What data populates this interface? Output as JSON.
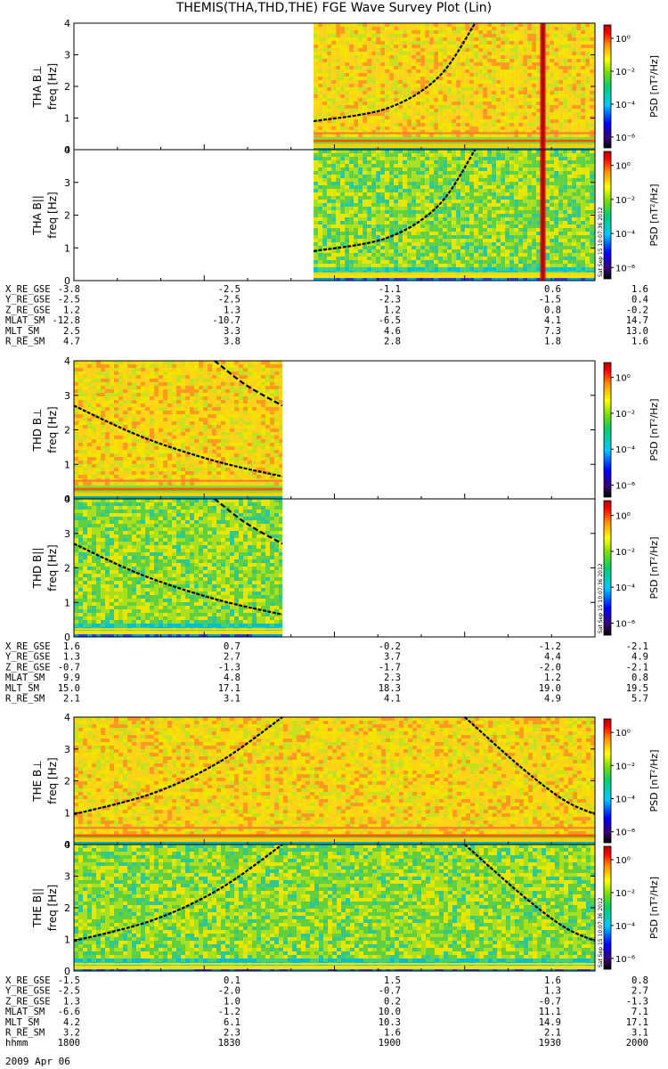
{
  "title": "THEMIS(THA,THD,THE) FGE Wave Survey Plot (Lin)",
  "date_label": "2009 Apr 06",
  "ylabel_freq": "freq [Hz]",
  "colorbar": {
    "label": "PSD [nT²/Hz]",
    "ticks": [
      "10⁰",
      "10⁻²",
      "10⁻⁴",
      "10⁻⁶"
    ],
    "stamp": "Sat Sep 15 10:07:36 2012"
  },
  "chart_data": [
    {
      "type": "heatmap",
      "probe": "THA",
      "panels": [
        {
          "name": "THA B⊥",
          "ylim": [
            0,
            4
          ],
          "yticks": [
            0,
            1,
            2,
            3,
            4
          ],
          "data_start_frac": 0.46,
          "data_end_frac": 1.0
        },
        {
          "name": "THA B||",
          "ylim": [
            0,
            4
          ],
          "yticks": [
            0,
            1,
            2,
            3,
            4
          ],
          "data_start_frac": 0.46,
          "data_end_frac": 1.0
        }
      ],
      "gyro_curves": [
        {
          "x": [
            0.46,
            0.6,
            0.7,
            0.77
          ],
          "y": [
            0.9,
            1.3,
            2.3,
            4.0
          ]
        }
      ],
      "spike_frac": 0.9,
      "ephemeris": {
        "X_RE_GSE": [
          "-3.8",
          "-2.5",
          "-1.1",
          "0.6",
          "1.6"
        ],
        "Y_RE_GSE": [
          "-2.5",
          "-2.5",
          "-2.3",
          "-1.5",
          "0.4"
        ],
        "Z_RE_GSE": [
          "1.2",
          "1.3",
          "1.2",
          "0.8",
          "-0.2"
        ],
        "MLAT_SM": [
          "-12.8",
          "-10.7",
          "-6.5",
          "4.1",
          "14.7"
        ],
        "MLT_SM": [
          "2.5",
          "3.3",
          "4.6",
          "7.3",
          "13.0"
        ],
        "R_RE_SM": [
          "4.7",
          "3.8",
          "2.8",
          "1.8",
          "1.6"
        ]
      }
    },
    {
      "type": "heatmap",
      "probe": "THD",
      "panels": [
        {
          "name": "THD B⊥",
          "ylim": [
            0,
            4
          ],
          "yticks": [
            0,
            1,
            2,
            3,
            4
          ],
          "data_start_frac": 0.0,
          "data_end_frac": 0.4
        },
        {
          "name": "THD B||",
          "ylim": [
            0,
            4
          ],
          "yticks": [
            0,
            1,
            2,
            3,
            4
          ],
          "data_start_frac": 0.0,
          "data_end_frac": 0.4
        }
      ],
      "gyro_curves": [
        {
          "x": [
            0.0,
            0.13,
            0.27,
            0.4
          ],
          "y": [
            2.7,
            1.8,
            1.1,
            0.65
          ]
        },
        {
          "x": [
            0.27,
            0.33,
            0.4
          ],
          "y": [
            4.0,
            3.3,
            2.7
          ]
        }
      ],
      "ephemeris": {
        "X_RE_GSE": [
          "1.6",
          "0.7",
          "-0.2",
          "-1.2",
          "-2.1"
        ],
        "Y_RE_GSE": [
          "1.3",
          "2.7",
          "3.7",
          "4.4",
          "4.9"
        ],
        "Z_RE_GSE": [
          "-0.7",
          "-1.3",
          "-1.7",
          "-2.0",
          "-2.1"
        ],
        "MLAT_SM": [
          "9.9",
          "4.8",
          "2.3",
          "1.2",
          "0.8"
        ],
        "MLT_SM": [
          "15.0",
          "17.1",
          "18.3",
          "19.0",
          "19.5"
        ],
        "R_RE_SM": [
          "2.1",
          "3.1",
          "4.1",
          "4.9",
          "5.7"
        ]
      }
    },
    {
      "type": "heatmap",
      "probe": "THE",
      "panels": [
        {
          "name": "THE B⊥",
          "ylim": [
            0,
            4
          ],
          "yticks": [
            0,
            1,
            2,
            3,
            4
          ],
          "data_start_frac": 0.0,
          "data_end_frac": 1.0
        },
        {
          "name": "THE B||",
          "ylim": [
            0,
            4
          ],
          "yticks": [
            0,
            1,
            2,
            3,
            4
          ],
          "data_start_frac": 0.0,
          "data_end_frac": 1.0
        }
      ],
      "gyro_curves": [
        {
          "x": [
            0.0,
            0.15,
            0.28,
            0.4
          ],
          "y": [
            0.95,
            1.6,
            2.6,
            4.0
          ]
        },
        {
          "x": [
            0.75,
            0.86,
            0.94,
            1.0
          ],
          "y": [
            4.0,
            2.4,
            1.4,
            0.95
          ]
        }
      ],
      "ephemeris": {
        "X_RE_GSE": [
          "-1.5",
          "0.1",
          "1.5",
          "1.6",
          "0.8"
        ],
        "Y_RE_GSE": [
          "-2.5",
          "-2.0",
          "-0.7",
          "1.3",
          "2.7"
        ],
        "Z_RE_GSE": [
          "1.3",
          "1.0",
          "0.2",
          "-0.7",
          "-1.3"
        ],
        "MLAT_SM": [
          "-6.6",
          "-1.2",
          "10.0",
          "11.1",
          "7.1"
        ],
        "MLT_SM": [
          "4.2",
          "6.1",
          "10.3",
          "14.9",
          "17.1"
        ],
        "R_RE_SM": [
          "3.2",
          "2.3",
          "1.6",
          "2.1",
          "3.1"
        ],
        "hhmm": [
          "1800",
          "1830",
          "1900",
          "1930",
          "2000"
        ]
      }
    }
  ]
}
